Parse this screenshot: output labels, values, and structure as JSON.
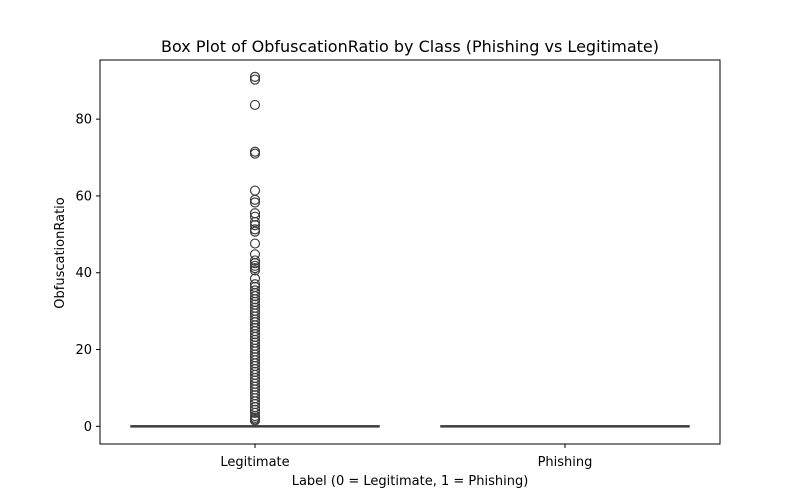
{
  "chart_data": {
    "type": "box",
    "title": "Box Plot of ObfuscationRatio by Class (Phishing vs Legitimate)",
    "xlabel": "Label (0 = Legitimate, 1 = Phishing)",
    "ylabel": "ObfuscationRatio",
    "categories": [
      "Legitimate",
      "Phishing"
    ],
    "ylim": [
      -4.6,
      95.4
    ],
    "yticks": [
      0,
      20,
      40,
      60,
      80
    ],
    "grid": false,
    "colors": {
      "box_edge": "#3d3d3d",
      "outlier": "#3d3d3d",
      "axis": "#000000"
    },
    "boxes": [
      {
        "category": "Legitimate",
        "q1": 0,
        "median": 0,
        "q3": 0,
        "whisker_low": 0,
        "whisker_high": 0,
        "outliers": [
          91.0,
          90.3,
          83.7,
          71.5,
          71.0,
          61.4,
          59.0,
          58.3,
          55.5,
          54.6,
          53.2,
          52.4,
          51.3,
          50.7,
          47.6,
          44.8,
          43.2,
          42.5,
          41.8,
          41.2,
          40.6,
          38.5,
          37.0,
          36.3,
          35.4,
          34.7,
          33.9,
          33.1,
          32.4,
          31.7,
          30.9,
          30.1,
          29.4,
          28.6,
          27.8,
          27.1,
          26.3,
          25.6,
          24.8,
          24.0,
          23.3,
          22.5,
          21.8,
          21.0,
          20.2,
          19.5,
          18.7,
          18.0,
          17.2,
          16.4,
          15.7,
          14.9,
          14.2,
          13.4,
          12.6,
          11.9,
          11.1,
          10.3,
          9.6,
          8.8,
          8.1,
          7.3,
          6.5,
          5.8,
          5.0,
          4.3,
          3.5,
          2.7,
          2.2,
          1.8,
          1.5
        ]
      },
      {
        "category": "Phishing",
        "q1": 0,
        "median": 0,
        "q3": 0,
        "whisker_low": 0,
        "whisker_high": 0,
        "outliers": []
      }
    ]
  }
}
